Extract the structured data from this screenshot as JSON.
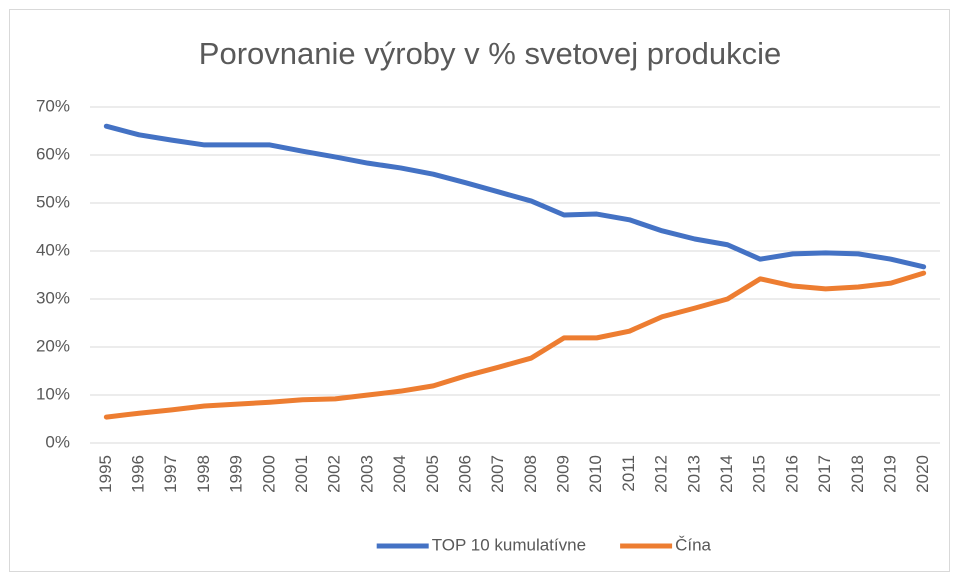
{
  "chart_data": {
    "type": "line",
    "title": "Porovnanie výroby v % svetovej produkcie",
    "categories": [
      "1995",
      "1996",
      "1997",
      "1998",
      "1999",
      "2000",
      "2001",
      "2002",
      "2003",
      "2004",
      "2005",
      "2006",
      "2007",
      "2008",
      "2009",
      "2010",
      "2011",
      "2012",
      "2013",
      "2014",
      "2015",
      "2016",
      "2017",
      "2018",
      "2019",
      "2020"
    ],
    "series": [
      {
        "name": "TOP 10 kumulatívne",
        "color": "#4472c4",
        "values": [
          66.0,
          64.2,
          63.1,
          62.1,
          62.1,
          62.1,
          60.8,
          59.6,
          58.3,
          57.3,
          56.0,
          54.2,
          52.3,
          50.4,
          47.5,
          47.7,
          46.5,
          44.2,
          42.5,
          41.3,
          38.3,
          39.4,
          39.6,
          39.4,
          38.3,
          36.7
        ]
      },
      {
        "name": "Čína",
        "color": "#ed7d31",
        "values": [
          5.4,
          6.2,
          6.9,
          7.7,
          8.1,
          8.5,
          9.0,
          9.2,
          10.0,
          10.8,
          11.9,
          14.0,
          15.8,
          17.7,
          21.9,
          21.9,
          23.3,
          26.3,
          28.1,
          30.0,
          34.2,
          32.7,
          32.1,
          32.5,
          33.3,
          35.4
        ]
      }
    ],
    "ylim": [
      0,
      70
    ],
    "yticks": [
      {
        "value": 0,
        "label": "0%"
      },
      {
        "value": 10,
        "label": "10%"
      },
      {
        "value": 20,
        "label": "20%"
      },
      {
        "value": 30,
        "label": "30%"
      },
      {
        "value": 40,
        "label": "40%"
      },
      {
        "value": 50,
        "label": "50%"
      },
      {
        "value": 60,
        "label": "60%"
      },
      {
        "value": 70,
        "label": "70%"
      }
    ],
    "grid": true,
    "legend": "bottom"
  }
}
